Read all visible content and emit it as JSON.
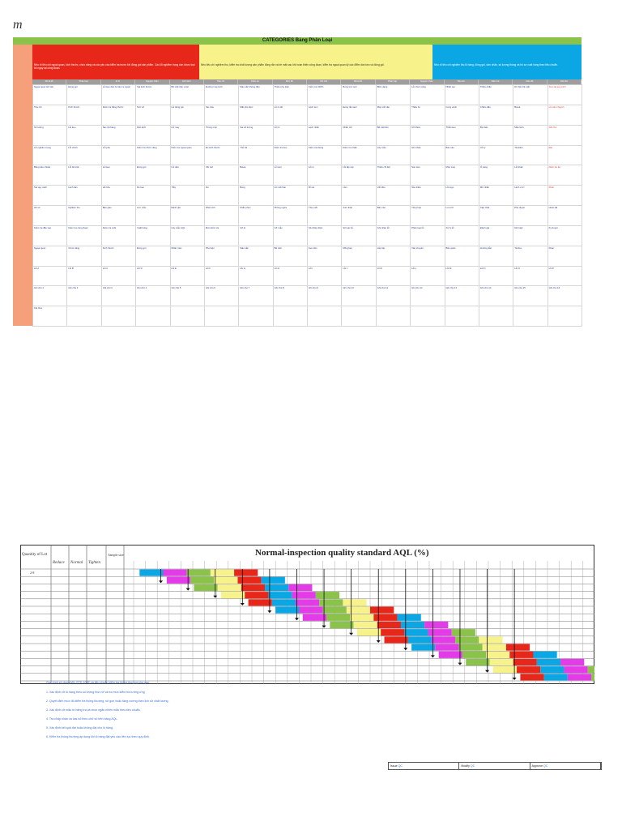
{
  "sheet": {
    "title": "CATEGORIES Bảng Phân Loại",
    "note_a": "Nêu rõ tiêu chí ngoại quan, kích thước, chức năng và các yêu cầu kiểm tra trước khi đóng gói sản phẩm. Các lỗi nghiêm trọng cần được loại bỏ ngay tại công đoạn.",
    "note_b": "Nêu tiêu chí nghiệm thu, kiểm tra chất lượng sản phẩm đóng rắn và bề mặt sau khi hoàn thiện công đoạn, kiểm tra ngoại quan kỹ các điểm dán keo và đóng gói.",
    "note_c": "Nêu rõ tiêu chí nghiệm thu lô hàng, đóng gói, dán nhãn, số lượng thùng và hồ sơ xuất hàng theo tiêu chuẩn.",
    "headers": [
      "Mô tả lỗi",
      "Phân loại",
      "Vị trí",
      "Nguyên nhân",
      "Hình ảnh",
      "Tiêu chí",
      "Kiểm tra",
      "Mức độ",
      "Ghi chú",
      "Mô tả lỗi",
      "Phân loại",
      "Nguyên nhân",
      "Tiêu chí",
      "Kiểm tra",
      "Mức độ",
      "Ghi chú"
    ],
    "cells": [
      "Ngoại quan bề mặt",
      "Đóng gói",
      "Lỗi keo dán bị tràn ra ngoài",
      "Sai kích thước",
      "Bề mặt trầy xước",
      "Đường may lệch",
      "Màu sắc không đều",
      "Thiếu phụ kiện",
      "Kiểm tra 100%",
      "Bong tróc sơn",
      "Biến dạng",
      "Lỗi chức năng",
      "Nhãn sai",
      "Thiếu nhãn",
      "Dơ bẩn bề mặt",
      "Xem lại quy trình",
      "Tiêu chí",
      "Kích thước",
      "Kiểm tra bằng thước",
      "Nứt vỡ",
      "Lỗi đóng gói",
      "Sai màu",
      "Mất phụ kiện",
      "Lỗi in ấn",
      "Lệch tem",
      "Đóng rắn kém",
      "Mép cắt xấu",
      "Thiếu ốc",
      "Cong vênh",
      "Chấm dầu",
      "Bavia",
      "Lỗi vận chuyển",
      "Số lượng",
      "Lỗi keo",
      "Sai mã hàng",
      "Dán lệch",
      "Lỗi may",
      "Thùng móp",
      "Sai số lượng",
      "Lỗi in",
      "Lệch nhãn",
      "Nhãn mờ",
      "Bề mặt lõm",
      "Chỉ thừa",
      "Thiếu keo",
      "Bụi bẩn",
      "Màu lệch",
      "Ghi chú",
      "Lỗi nghiêm trọng",
      "Lỗi chính",
      "Lỗi phụ",
      "Kiểm tra chức năng",
      "Kiểm tra ngoại quan",
      "Đo kích thước",
      "Thử tải",
      "Kiểm tra keo",
      "Kiểm tra thùng",
      "Kiểm tra nhãn",
      "Lấy mẫu",
      "Ghi nhận",
      "Báo cáo",
      "Xử lý",
      "Tái kiểm",
      "Đạt",
      "Bảng tiêu chuẩn",
      "Lỗi bề mặt",
      "Lỗi keo",
      "Đóng gói",
      "Lỗi dán",
      "Vết nứt",
      "Bavia",
      "Lỗi sơn",
      "Lỗi in",
      "Lỗi lắp ráp",
      "Thiếu chi tiết",
      "Sai màu",
      "Móp méo",
      "Ố vàng",
      "Lỗi khác",
      "Kiểm tra lại",
      "Sai quy cách",
      "Lệch tâm",
      "Hở khe",
      "Rò keo",
      "Trầy",
      "Dơ",
      "Bong",
      "Lỗi mối hàn",
      "Rỉ sét",
      "Lõm",
      "Vết dầu",
      "Sai chiều",
      "Lỗi logo",
      "Mờ nhãn",
      "Lệch vị trí",
      "Khác",
      "Hồ sơ",
      "Nghiệm thu",
      "Bàn giao",
      "Lưu mẫu",
      "Đánh giá",
      "Phân tích",
      "Khắc phục",
      "Phòng ngừa",
      "Theo dõi",
      "Xác nhận",
      "Báo cáo",
      "Tổng hợp",
      "Lưu trữ",
      "Cập nhật",
      "Phê duyệt",
      "Hoàn tất",
      "Kiểm tra đầu vào",
      "Kiểm tra công đoạn",
      "Kiểm tra cuối",
      "Xuất hàng",
      "Lấy mẫu AQL",
      "Mức kiểm tra",
      "Cỡ lô",
      "Cỡ mẫu",
      "Số chấp nhận",
      "Số loại bỏ",
      "Ghi nhận lỗi",
      "Phân loại lỗi",
      "Xử lý lỗi",
      "Đánh giá",
      "Kết luận",
      "Ký duyệt",
      "Ngoại quan",
      "Chức năng",
      "Kích thước",
      "Đóng gói",
      "Nhãn mác",
      "Phụ kiện",
      "Màu sắc",
      "Bề mặt",
      "Keo dán",
      "Mối ghép",
      "Lắp ráp",
      "Vận chuyển",
      "Bảo quản",
      "Hướng dẫn",
      "Tài liệu",
      "Khác",
      "Lỗi A",
      "Lỗi B",
      "Lỗi C",
      "Lỗi D",
      "Lỗi E",
      "Lỗi F",
      "Lỗi G",
      "Lỗi H",
      "Lỗi I",
      "Lỗi J",
      "Lỗi K",
      "Lỗi L",
      "Lỗi M",
      "Lỗi N",
      "Lỗi O",
      "Lỗi P",
      "Ghi chú 1",
      "Ghi chú 2",
      "Ghi chú 3",
      "Ghi chú 4",
      "Ghi chú 5",
      "Ghi chú 6",
      "Ghi chú 7",
      "Ghi chú 8",
      "Ghi chú 9",
      "Ghi chú 10",
      "Ghi chú 11",
      "Ghi chú 12",
      "Ghi chú 13",
      "Ghi chú 14",
      "Ghi chú 15",
      "Ghi chú 16",
      "Kết thúc",
      "",
      "",
      "",
      "",
      "",
      "",
      "",
      "",
      "",
      "",
      "",
      "",
      "",
      "",
      ""
    ]
  },
  "aql": {
    "title": "Normal-inspection quality standard AQL (%)",
    "lot_label": "Quantity of Lot",
    "col_labels": [
      "Reduce",
      "Normal",
      "Tighten"
    ],
    "sample_label": "Sample size",
    "intro": "Quy trình sử dụng MIL-STD-105E và tiêu chuẩn kiểm tra thông thường như sau:",
    "notes": [
      "1. Xác định cỡ lô hàng theo số lượng thực tế và tra mức kiểm tra tương ứng.",
      "2. Quyết định mức độ kiểm tra thông thường, rút gọn hoặc tăng cường theo lịch sử chất lượng.",
      "3. Xác định cỡ mẫu từ bảng tra và chọn ngẫu nhiên mẫu theo tiêu chuẩn.",
      "4. Tra chấp nhận và loại bỏ theo chữ số trên bảng AQL.",
      "5. Xác định kết quả đạt hoặc không đạt cho lô hàng.",
      "6. Kiểm tra thông thường áp dụng khi lô hàng đạt yêu cầu liên tục theo quy định."
    ],
    "sign": {
      "issue_label": "Issue",
      "issue_value": "QC",
      "modify_label": "Modify",
      "modify_value": "QC",
      "approve_label": "Approve",
      "approve_value": "QC"
    }
  },
  "colors": {
    "green": "#8bc34a",
    "red": "#e8271b",
    "yellow": "#f7f38a",
    "cyan": "#0aa7e4",
    "magenta": "#e33be8",
    "grey": "#9e9e9e"
  }
}
